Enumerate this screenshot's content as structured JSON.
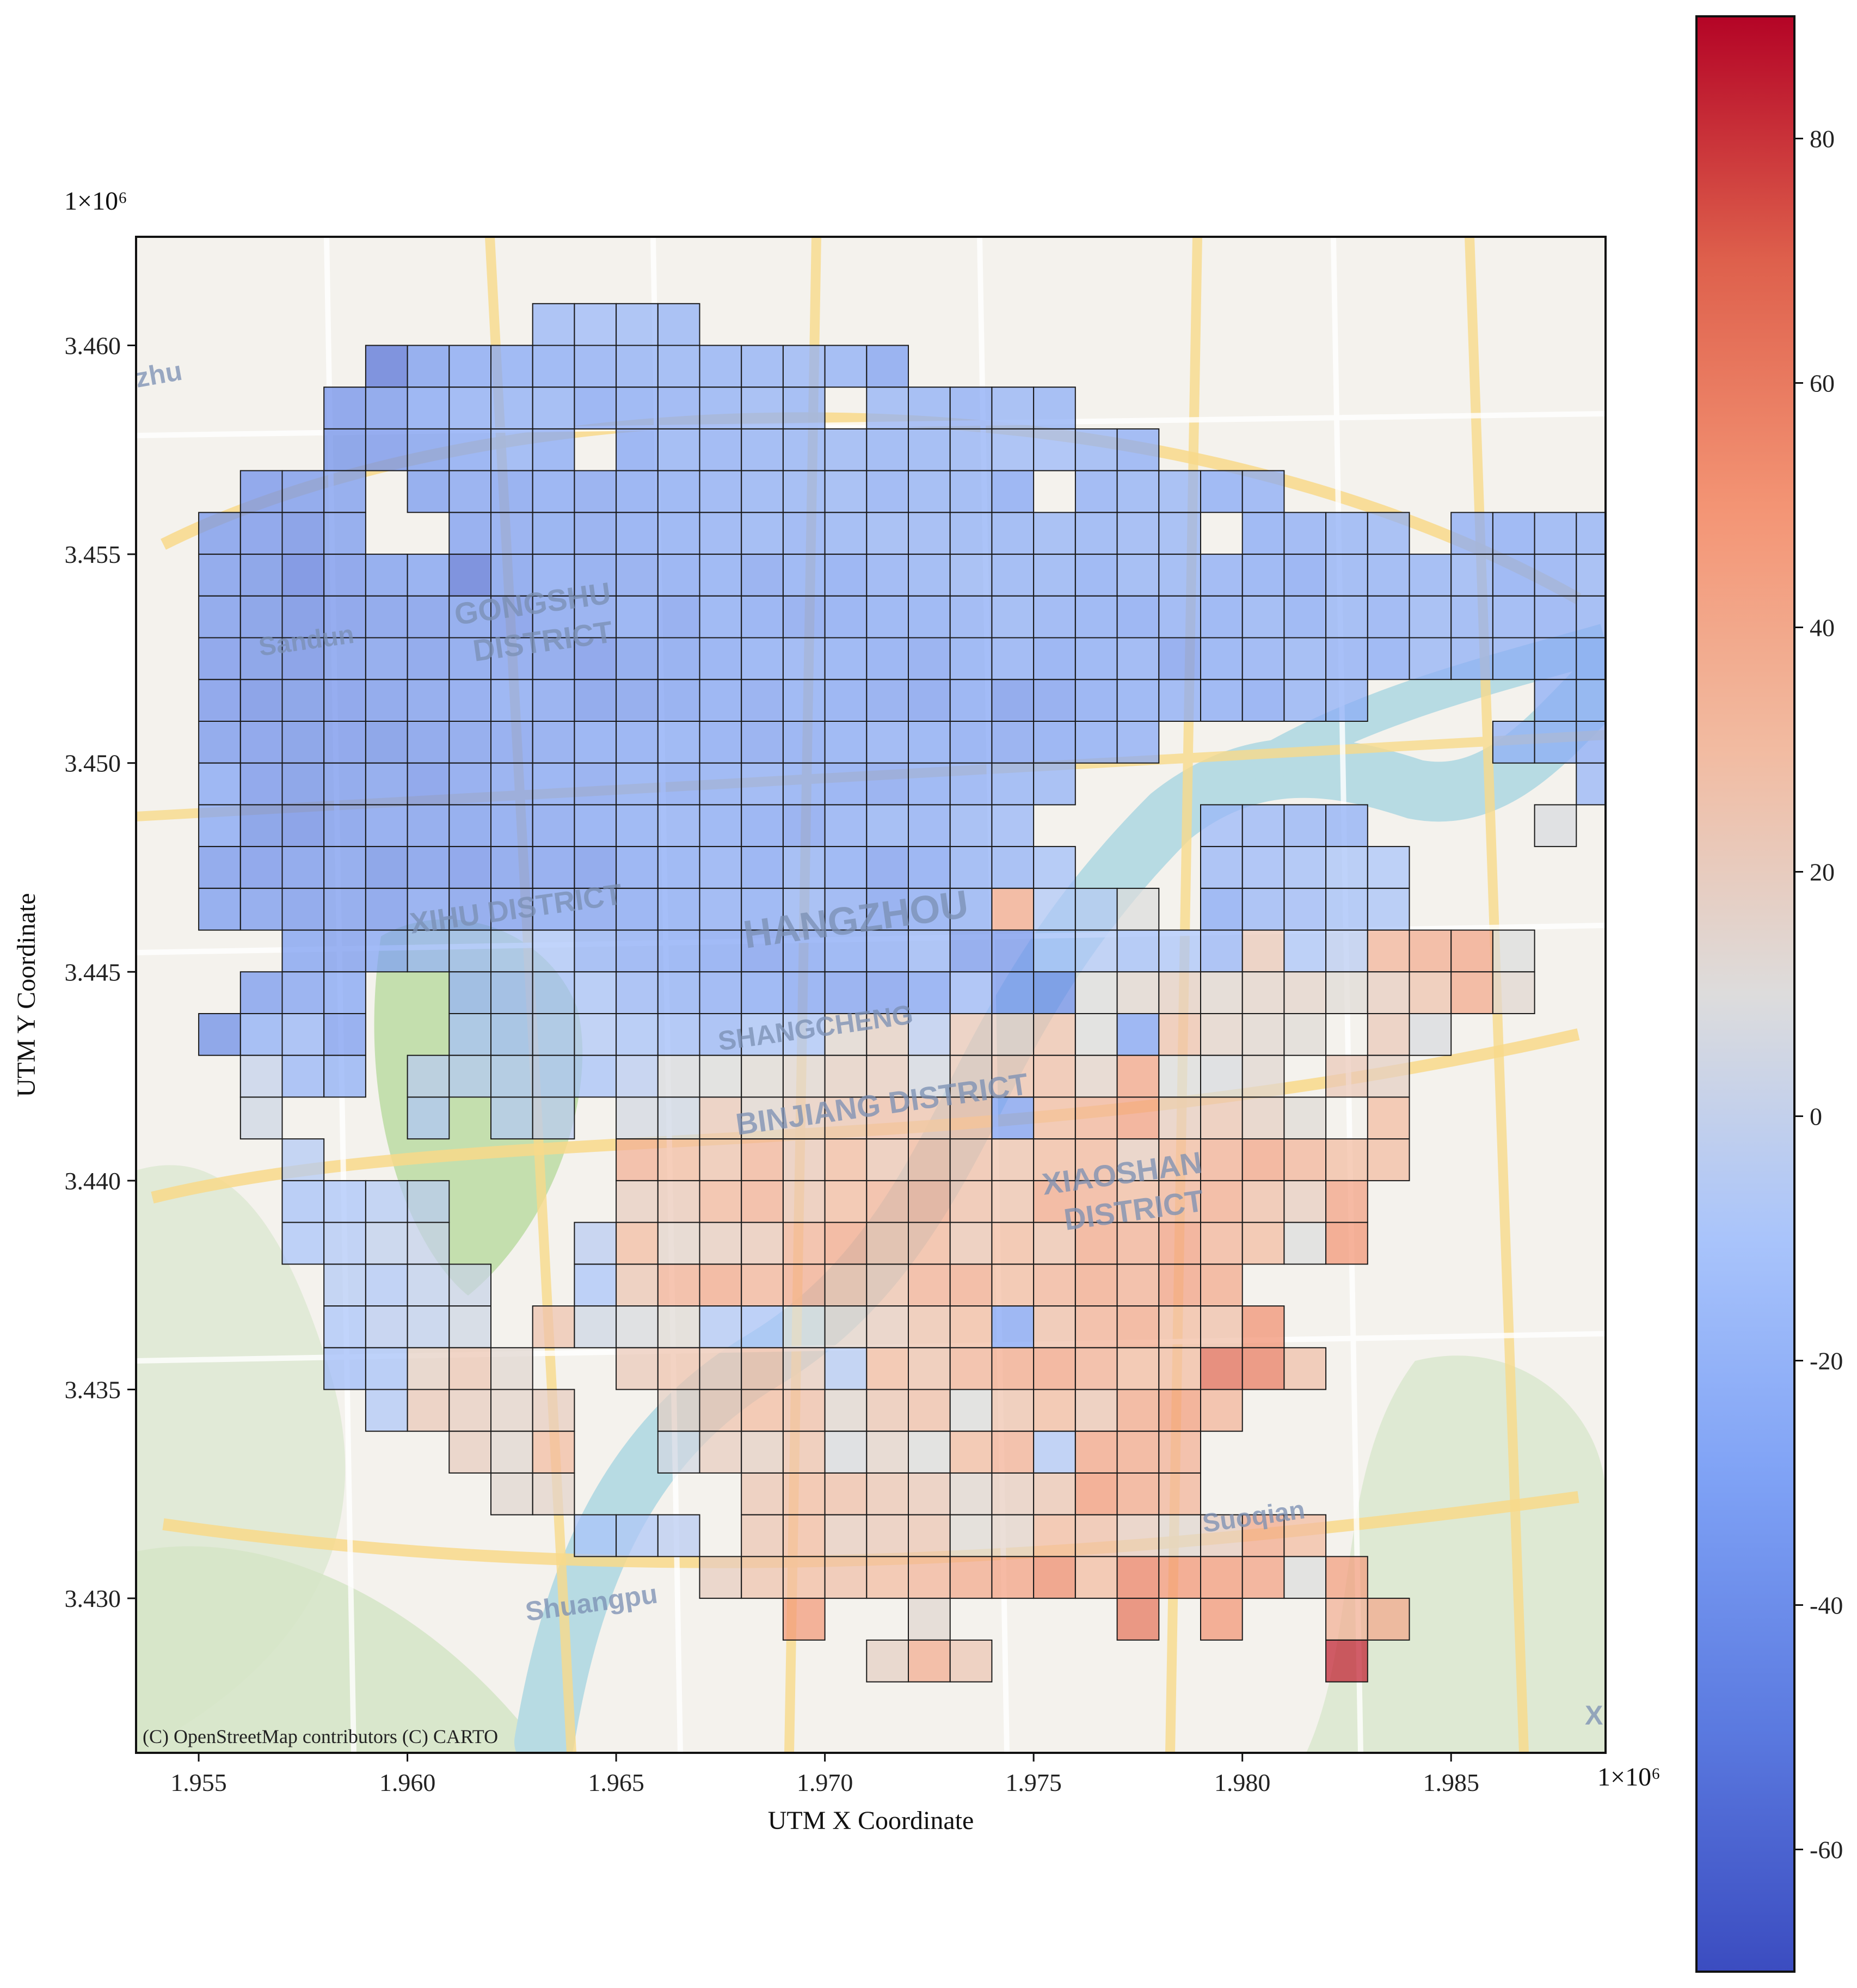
{
  "chart_data": {
    "type": "heatmap",
    "xlabel": "UTM X Coordinate",
    "ylabel": "UTM Y Coordinate",
    "x_offset_label": "1×10⁶",
    "y_offset_label": "1×10⁶",
    "xlim": [
      1.9535,
      1.9887
    ],
    "ylim": [
      3.4263,
      3.4626
    ],
    "x_ticks": [
      {
        "value": 1.955,
        "label": "1.955"
      },
      {
        "value": 1.96,
        "label": "1.960"
      },
      {
        "value": 1.965,
        "label": "1.965"
      },
      {
        "value": 1.97,
        "label": "1.970"
      },
      {
        "value": 1.975,
        "label": "1.975"
      },
      {
        "value": 1.98,
        "label": "1.980"
      },
      {
        "value": 1.985,
        "label": "1.985"
      }
    ],
    "y_ticks": [
      {
        "value": 3.43,
        "label": "3.430"
      },
      {
        "value": 3.435,
        "label": "3.435"
      },
      {
        "value": 3.44,
        "label": "3.440"
      },
      {
        "value": 3.445,
        "label": "3.445"
      },
      {
        "value": 3.45,
        "label": "3.450"
      },
      {
        "value": 3.455,
        "label": "3.455"
      },
      {
        "value": 3.46,
        "label": "3.460"
      }
    ],
    "grid_origin": {
      "x": 1.955,
      "y": 3.428
    },
    "cell_size": 0.001,
    "colorbar": {
      "colormap": "coolwarm",
      "vmin": -70,
      "vmax": 90,
      "ticks": [
        {
          "value": 80,
          "label": "80"
        },
        {
          "value": 60,
          "label": "60"
        },
        {
          "value": 40,
          "label": "40"
        },
        {
          "value": 20,
          "label": "20"
        },
        {
          "value": 0,
          "label": "0"
        },
        {
          "value": -20,
          "label": "-20"
        },
        {
          "value": -40,
          "label": "-40"
        },
        {
          "value": -60,
          "label": "-60"
        }
      ]
    },
    "grid_rows_from_top": [
      {
        "row": 32,
        "start_col": 8,
        "values": [
          -20,
          -18,
          -19,
          -22
        ]
      },
      {
        "row": 31,
        "start_col": 4,
        "values": [
          -55,
          -35,
          -30,
          -28,
          -27,
          -26,
          -25,
          -24,
          -25,
          -24,
          -22,
          -25,
          -33
        ]
      },
      {
        "row": 30,
        "start_col": 3,
        "values": [
          -40,
          -38,
          -30,
          -26,
          -25,
          -24,
          -30,
          -28,
          -26,
          -25,
          -22,
          -24,
          null,
          -22,
          -24,
          -26,
          -22,
          -24
        ]
      },
      {
        "row": 29,
        "start_col": 3,
        "values": [
          -42,
          -40,
          -35,
          -30,
          -25,
          -28,
          null,
          -30,
          -25,
          -26,
          -25,
          -24,
          -22,
          -25,
          -24,
          -23,
          -20,
          -18,
          -22,
          -26
        ]
      },
      {
        "row": 28,
        "start_col": 1,
        "values": [
          -40,
          -38,
          -36,
          null,
          -35,
          -32,
          -33,
          -30,
          -32,
          -30,
          -28,
          -26,
          -25,
          -24,
          -22,
          -26,
          -24,
          -25,
          -30,
          null,
          -26,
          -24,
          -22,
          -28,
          -26
        ]
      },
      {
        "row": 27,
        "start_col": 0,
        "values": [
          -38,
          -40,
          -44,
          -36,
          null,
          null,
          -34,
          -32,
          -31,
          -32,
          -30,
          -28,
          -26,
          -25,
          -26,
          -24,
          -22,
          -23,
          -24,
          -25,
          -22,
          -25,
          -23,
          -22,
          null,
          -28,
          -26,
          -24,
          -22,
          null,
          -26,
          -28,
          -25,
          -24,
          -22
        ]
      },
      {
        "row": 26,
        "start_col": 0,
        "values": [
          -38,
          -42,
          -50,
          -40,
          -35,
          -33,
          -55,
          -35,
          -30,
          -33,
          -32,
          -30,
          -28,
          -32,
          -28,
          -30,
          -26,
          -25,
          -22,
          -25,
          -24,
          -28,
          -24,
          -24,
          -26,
          -28,
          -30,
          -25,
          -25,
          -24,
          -22,
          -28,
          -26,
          -22,
          -25
        ]
      },
      {
        "row": 25,
        "start_col": 0,
        "values": [
          -38,
          -42,
          -45,
          -40,
          -38,
          -38,
          -35,
          -40,
          -33,
          -32,
          -30,
          -34,
          -28,
          -30,
          -32,
          -30,
          -28,
          -28,
          -26,
          -24,
          -26,
          -28,
          -30,
          -26,
          -28,
          -25,
          -28,
          -24,
          -26,
          -22,
          -24,
          -25,
          -26,
          -24,
          -25
        ]
      },
      {
        "row": 24,
        "start_col": 0,
        "values": [
          -40,
          -42,
          -44,
          -38,
          -36,
          -38,
          -35,
          -34,
          -36,
          -40,
          -35,
          -33,
          -30,
          -28,
          -26,
          -28,
          -30,
          -32,
          -28,
          -26,
          -30,
          -28,
          -26,
          -34,
          -28,
          -26,
          -24,
          -26,
          -28,
          -22,
          -24,
          -24,
          -26,
          -28,
          -25
        ]
      },
      {
        "row": 23,
        "start_col": 0,
        "values": [
          -40,
          -44,
          -42,
          -40,
          -38,
          -36,
          -34,
          -30,
          -32,
          -38,
          -36,
          -33,
          -30,
          -32,
          -28,
          -30,
          -32,
          -34,
          -30,
          -38,
          -34,
          -30,
          -28,
          -26,
          -28,
          -30,
          -25,
          -24,
          null,
          null,
          null,
          null,
          -25,
          -24,
          -26
        ]
      },
      {
        "row": 22,
        "start_col": 0,
        "values": [
          -38,
          -40,
          -42,
          -40,
          -42,
          -38,
          -36,
          -34,
          -32,
          -30,
          -30,
          -28,
          -30,
          -32,
          -30,
          -28,
          -26,
          -28,
          -30,
          -32,
          -30,
          -28,
          -26,
          null,
          null,
          null,
          null,
          null,
          null,
          null,
          null,
          -22,
          -24,
          -26,
          -24
        ]
      },
      {
        "row": 21,
        "start_col": 0,
        "values": [
          -30,
          -40,
          -42,
          -38,
          -36,
          -40,
          -34,
          -32,
          -30,
          -32,
          -28,
          -30,
          -28,
          -26,
          -28,
          -30,
          -32,
          -28,
          -26,
          -24,
          -22,
          null,
          null,
          null,
          null,
          null,
          null,
          null,
          null,
          null,
          null,
          null,
          null,
          -20,
          -22
        ]
      },
      {
        "row": 20,
        "start_col": 0,
        "values": [
          -30,
          -42,
          -44,
          -38,
          -34,
          -36,
          -35,
          -33,
          -32,
          -30,
          -28,
          -26,
          -28,
          -30,
          -32,
          -26,
          -24,
          -26,
          -22,
          -20,
          null,
          null,
          null,
          null,
          -18,
          -20,
          -22,
          -24,
          null,
          null,
          null,
          null,
          8,
          null,
          -25
        ]
      },
      {
        "row": 19,
        "start_col": 0,
        "values": [
          -38,
          -40,
          -38,
          -36,
          -42,
          -38,
          -40,
          -36,
          -34,
          -38,
          -30,
          -28,
          -26,
          -30,
          -24,
          -28,
          -34,
          -30,
          -24,
          -22,
          -14,
          null,
          null,
          null,
          -20,
          -18,
          -16,
          -12,
          -10
        ]
      },
      {
        "row": 18,
        "start_col": 0,
        "values": [
          -35,
          -36,
          -38,
          -36,
          -38,
          -32,
          -36,
          -34,
          -30,
          -32,
          -30,
          -28,
          -26,
          -28,
          -22,
          -26,
          -33,
          -28,
          -24,
          40,
          -8,
          -5,
          10,
          null,
          -28,
          -20,
          -18,
          -14,
          -12
        ]
      },
      {
        "row": 17,
        "start_col": 2,
        "values": [
          -33,
          -36,
          -30,
          -20,
          -16,
          -12,
          -10,
          -22,
          -26,
          -28,
          -30,
          -34,
          -30,
          -28,
          -26,
          -20,
          -36,
          -38,
          -14,
          -8,
          -14,
          -10,
          -20,
          22,
          -10,
          -4,
          34,
          38,
          42,
          10
        ]
      },
      {
        "row": 16,
        "start_col": 1,
        "values": [
          -36,
          -32,
          -30,
          null,
          null,
          -20,
          -18,
          -14,
          -12,
          -20,
          -24,
          -26,
          -28,
          -30,
          -32,
          -34,
          -30,
          -18,
          -38,
          -42,
          10,
          14,
          18,
          14,
          16,
          16,
          12,
          20,
          26,
          40,
          14
        ]
      },
      {
        "row": 15,
        "start_col": 0,
        "values": [
          -42,
          -24,
          -20,
          -34,
          null,
          null,
          -12,
          -14,
          -10,
          -8,
          -12,
          -16,
          -20,
          -12,
          -10,
          14,
          18,
          -4,
          22,
          20,
          26,
          10,
          -30,
          26,
          16,
          14,
          12,
          null,
          22,
          8
        ]
      },
      {
        "row": 14,
        "start_col": 1,
        "values": [
          0,
          -20,
          -24,
          null,
          -4,
          -6,
          -8,
          -10,
          -12,
          -4,
          8,
          10,
          12,
          14,
          18,
          20,
          6,
          22,
          26,
          28,
          16,
          42,
          10,
          8,
          14,
          null,
          22,
          18
        ]
      },
      {
        "row": 13,
        "start_col": 1,
        "values": [
          4,
          null,
          null,
          null,
          -8,
          null,
          -6,
          -4,
          null,
          6,
          4,
          22,
          14,
          20,
          24,
          28,
          26,
          30,
          -32,
          30,
          34,
          44,
          20,
          24,
          18,
          12,
          null,
          30
        ]
      },
      {
        "row": 12,
        "start_col": 2,
        "values": [
          -6,
          null,
          null,
          null,
          null,
          null,
          null,
          null,
          36,
          30,
          26,
          34,
          22,
          30,
          24,
          32,
          28,
          26,
          30,
          32,
          20,
          30,
          36,
          42,
          34,
          30,
          30
        ]
      },
      {
        "row": 11,
        "start_col": 2,
        "values": [
          -12,
          -10,
          -6,
          -4,
          null,
          null,
          null,
          null,
          20,
          22,
          32,
          36,
          24,
          30,
          34,
          38,
          28,
          26,
          40,
          36,
          30,
          34,
          38,
          28,
          20,
          44
        ]
      },
      {
        "row": 10,
        "start_col": 2,
        "values": [
          -10,
          -8,
          -2,
          0,
          null,
          null,
          null,
          -4,
          30,
          16,
          20,
          22,
          34,
          40,
          30,
          32,
          24,
          30,
          26,
          40,
          36,
          44,
          34,
          30,
          10,
          50
        ]
      },
      {
        "row": 9,
        "start_col": 3,
        "values": [
          -6,
          -8,
          -2,
          2,
          null,
          null,
          -10,
          24,
          36,
          40,
          34,
          38,
          30,
          26,
          36,
          38,
          30,
          34,
          40,
          36,
          44,
          40
        ]
      },
      {
        "row": 8,
        "start_col": 3,
        "values": [
          -10,
          -4,
          -2,
          4,
          null,
          26,
          4,
          8,
          12,
          -8,
          -10,
          10,
          16,
          20,
          26,
          30,
          -30,
          28,
          36,
          40,
          30,
          28,
          52
        ]
      },
      {
        "row": 7,
        "start_col": 3,
        "values": [
          -16,
          -12,
          18,
          24,
          14,
          null,
          null,
          22,
          26,
          24,
          30,
          20,
          -6,
          30,
          26,
          34,
          40,
          42,
          36,
          30,
          30,
          66,
          60,
          28
        ]
      },
      {
        "row": 6,
        "start_col": 4,
        "values": [
          -8,
          22,
          20,
          16,
          20,
          null,
          null,
          18,
          26,
          30,
          28,
          14,
          24,
          28,
          10,
          26,
          30,
          24,
          40,
          46,
          34
        ]
      },
      {
        "row": 5,
        "start_col": 6,
        "values": [
          20,
          14,
          30,
          null,
          null,
          6,
          20,
          18,
          26,
          8,
          16,
          10,
          30,
          36,
          -8,
          42,
          40,
          36
        ]
      },
      {
        "row": 4,
        "start_col": 7,
        "values": [
          14,
          16,
          null,
          null,
          null,
          null,
          24,
          30,
          28,
          24,
          22,
          14,
          20,
          24,
          48,
          40,
          34
        ]
      },
      {
        "row": 3,
        "start_col": 9,
        "values": [
          -10,
          -8,
          -4,
          null,
          24,
          30,
          20,
          22,
          24,
          12,
          16,
          30,
          28,
          20,
          14,
          20,
          40,
          30
        ]
      },
      {
        "row": 2,
        "start_col": 12,
        "values": [
          20,
          26,
          30,
          28,
          30,
          34,
          40,
          44,
          54,
          30,
          58,
          50,
          48,
          44,
          10,
          46
        ]
      },
      {
        "row": 1,
        "start_col": 14,
        "values": [
          48,
          null,
          null,
          14,
          null,
          null,
          null,
          null,
          62,
          null,
          50,
          null,
          null,
          36,
          40
        ]
      },
      {
        "row": 0,
        "start_col": 16,
        "values": [
          18,
          38,
          24,
          null,
          null,
          null,
          null,
          null,
          null,
          null,
          null,
          84
        ]
      }
    ]
  },
  "map": {
    "attribution": "(C) OpenStreetMap contributors (C) CARTO",
    "labels": [
      {
        "text": "zhu"
      },
      {
        "text": "Sandun"
      },
      {
        "text": "GONGSHU"
      },
      {
        "text": "DISTRICT"
      },
      {
        "text": "XIHU DISTRICT"
      },
      {
        "text": "HANGZHOU"
      },
      {
        "text": "SHANGCHENG"
      },
      {
        "text": "BINJIANG DISTRICT"
      },
      {
        "text": "XIAOSHAN"
      },
      {
        "text": "DISTRICT"
      },
      {
        "text": "Suoqian"
      },
      {
        "text": "Shuangpu"
      },
      {
        "text": "X"
      }
    ]
  }
}
